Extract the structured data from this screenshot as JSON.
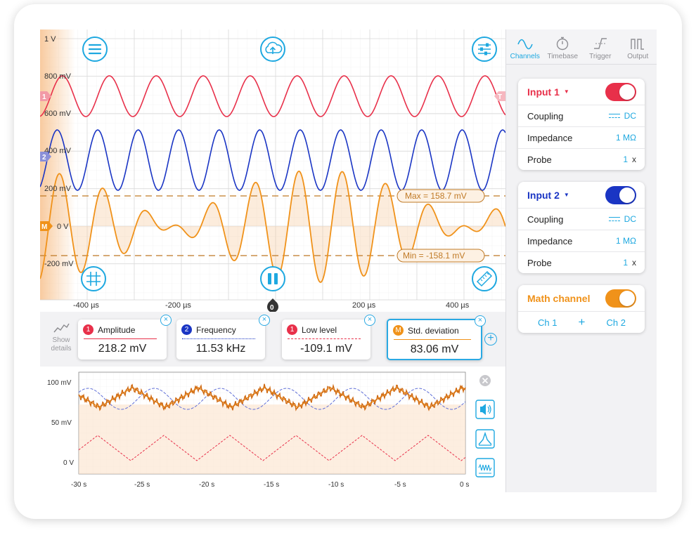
{
  "scope": {
    "y_labels": [
      "1 V",
      "800 mV",
      "600 mV",
      "400 mV",
      "200 mV",
      "0 V",
      "-200 mV"
    ],
    "x_labels": [
      "-400 µs",
      "-200 µs",
      "200 µs",
      "400 µs"
    ],
    "trigger_marker": "0",
    "ch1_marker": "1",
    "ch2_marker": "2",
    "math_marker": "M",
    "trigger_right_marker": "T",
    "max_label": "Max = 158.7 mV",
    "min_label": "Min = -158.1 mV",
    "icons": [
      "menu-icon",
      "cloud-upload-icon",
      "sliders-icon",
      "grid-icon",
      "pause-icon",
      "ruler-icon"
    ],
    "colors": {
      "ch1": "#e8304a",
      "ch2": "#1a35c4",
      "math": "#f0921a",
      "accent": "#1ea8e0"
    }
  },
  "measurements": {
    "show_details": [
      "Show",
      "details"
    ],
    "cards": [
      {
        "badge": "1",
        "label": "Amplitude",
        "value": "218.2 mV",
        "color": "#e8304a"
      },
      {
        "badge": "2",
        "label": "Frequency",
        "value": "11.53 kHz",
        "color": "#1a35c4"
      },
      {
        "badge": "1",
        "label": "Low level",
        "value": "-109.1 mV",
        "color": "#e8304a"
      },
      {
        "badge": "M",
        "label": "Std. deviation",
        "value": "83.06 mV",
        "color": "#f0921a"
      }
    ],
    "add": "+"
  },
  "trend": {
    "y_labels": [
      "100 mV",
      "50 mV",
      "0 V"
    ],
    "x_labels": [
      "-30 s",
      "-25 s",
      "-20 s",
      "-15 s",
      "-10 s",
      "-5 s",
      "0 s"
    ],
    "icons": [
      "close-icon",
      "speaker-icon",
      "spectrum-icon",
      "waveform-icon"
    ]
  },
  "sidebar": {
    "tabs": [
      "Channels",
      "Timebase",
      "Trigger",
      "Output"
    ],
    "input1": {
      "title": "Input 1",
      "coupling_label": "Coupling",
      "coupling_value": "DC",
      "impedance_label": "Impedance",
      "impedance_value": "1 MΩ",
      "probe_label": "Probe",
      "probe_value": "1",
      "probe_unit": "x"
    },
    "input2": {
      "title": "Input 2",
      "coupling_label": "Coupling",
      "coupling_value": "DC",
      "impedance_label": "Impedance",
      "impedance_value": "1 MΩ",
      "probe_label": "Probe",
      "probe_value": "1",
      "probe_unit": "x"
    },
    "math": {
      "title": "Math channel",
      "ch1": "Ch 1",
      "plus": "+",
      "ch2": "Ch 2"
    }
  }
}
